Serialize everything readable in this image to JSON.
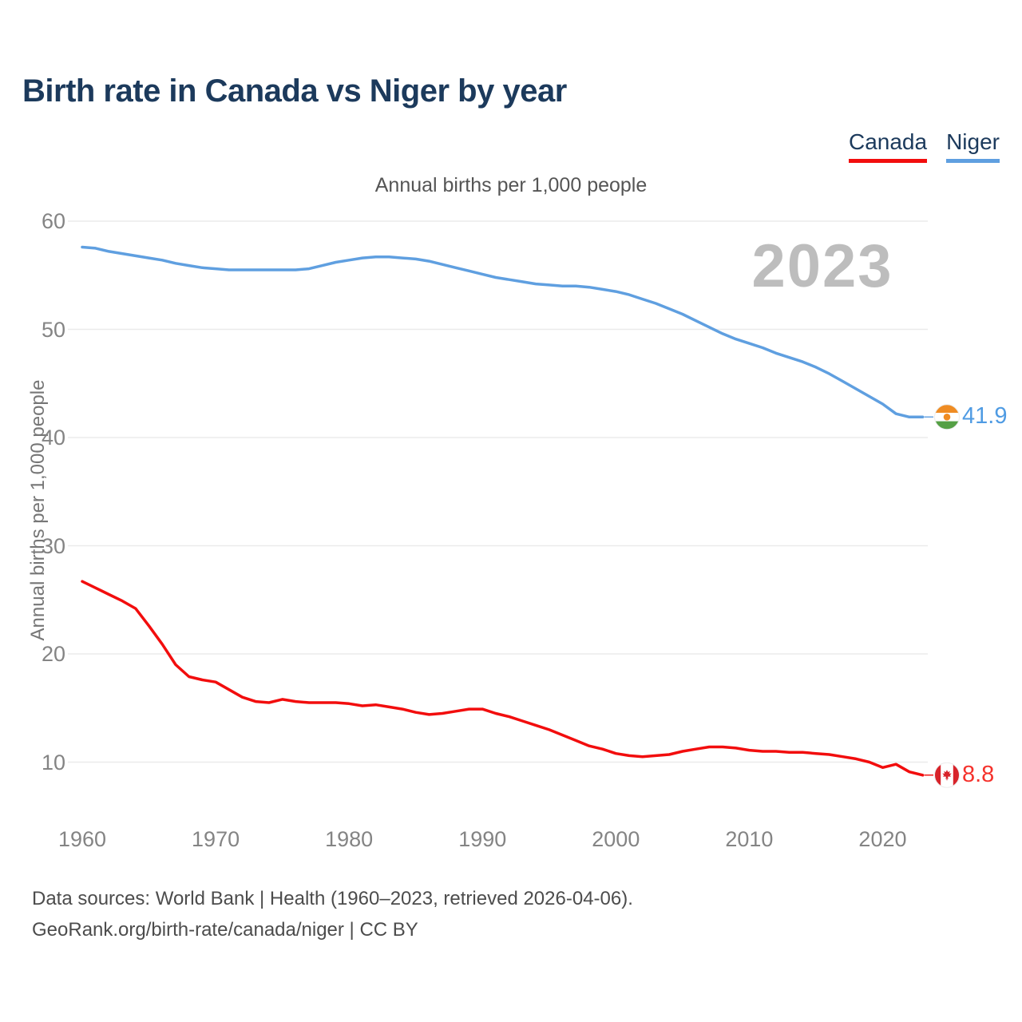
{
  "page": {
    "title": "Birth rate in Canada vs Niger by year",
    "subtitle": "Annual births per 1,000 people",
    "watermark_year": "2023"
  },
  "legend": {
    "items": [
      {
        "label": "Canada",
        "color": "#f20d0d"
      },
      {
        "label": "Niger",
        "color": "#5f9fe0"
      }
    ]
  },
  "chart_data": {
    "type": "line",
    "title": "Annual births per 1,000 people",
    "xlabel": "",
    "ylabel": "Annual births per 1,000 people",
    "x_range": [
      1960,
      2023
    ],
    "ylim": [
      8,
      62
    ],
    "grid": "horizontal",
    "legend_position": "top-right",
    "yticks": [
      10,
      20,
      30,
      40,
      50,
      60
    ],
    "xticks": [
      1960,
      1970,
      1980,
      1990,
      2000,
      2010,
      2020
    ],
    "x": [
      1960,
      1961,
      1962,
      1963,
      1964,
      1965,
      1966,
      1967,
      1968,
      1969,
      1970,
      1971,
      1972,
      1973,
      1974,
      1975,
      1976,
      1977,
      1978,
      1979,
      1980,
      1981,
      1982,
      1983,
      1984,
      1985,
      1986,
      1987,
      1988,
      1989,
      1990,
      1991,
      1992,
      1993,
      1994,
      1995,
      1996,
      1997,
      1998,
      1999,
      2000,
      2001,
      2002,
      2003,
      2004,
      2005,
      2006,
      2007,
      2008,
      2009,
      2010,
      2011,
      2012,
      2013,
      2014,
      2015,
      2016,
      2017,
      2018,
      2019,
      2020,
      2021,
      2022,
      2023
    ],
    "series": [
      {
        "name": "Canada",
        "color": "#f20d0d",
        "label_color": "#f5322c",
        "flag": "canada",
        "end_label": "8.8",
        "values": [
          26.7,
          26.1,
          25.5,
          24.9,
          24.2,
          22.6,
          20.9,
          19.0,
          17.9,
          17.6,
          17.4,
          16.7,
          16.0,
          15.6,
          15.5,
          15.8,
          15.6,
          15.5,
          15.5,
          15.5,
          15.4,
          15.2,
          15.3,
          15.1,
          14.9,
          14.6,
          14.4,
          14.5,
          14.7,
          14.9,
          14.9,
          14.5,
          14.2,
          13.8,
          13.4,
          13.0,
          12.5,
          12.0,
          11.5,
          11.2,
          10.8,
          10.6,
          10.5,
          10.6,
          10.7,
          11.0,
          11.2,
          11.4,
          11.4,
          11.3,
          11.1,
          11.0,
          11.0,
          10.9,
          10.9,
          10.8,
          10.7,
          10.5,
          10.3,
          10.0,
          9.5,
          9.8,
          9.1,
          8.8
        ]
      },
      {
        "name": "Niger",
        "color": "#5f9fe0",
        "label_color": "#4f9be3",
        "flag": "niger",
        "end_label": "41.9",
        "values": [
          57.6,
          57.5,
          57.2,
          57.0,
          56.8,
          56.6,
          56.4,
          56.1,
          55.9,
          55.7,
          55.6,
          55.5,
          55.5,
          55.5,
          55.5,
          55.5,
          55.5,
          55.6,
          55.9,
          56.2,
          56.4,
          56.6,
          56.7,
          56.7,
          56.6,
          56.5,
          56.3,
          56.0,
          55.7,
          55.4,
          55.1,
          54.8,
          54.6,
          54.4,
          54.2,
          54.1,
          54.0,
          54.0,
          53.9,
          53.7,
          53.5,
          53.2,
          52.8,
          52.4,
          51.9,
          51.4,
          50.8,
          50.2,
          49.6,
          49.1,
          48.7,
          48.3,
          47.8,
          47.4,
          47.0,
          46.5,
          45.9,
          45.2,
          44.5,
          43.8,
          43.1,
          42.2,
          41.9,
          41.9
        ]
      }
    ]
  },
  "footer": {
    "line1": "Data sources: World Bank | Health (1960–2023, retrieved 2026-04-06).",
    "line2": "GeoRank.org/birth-rate/canada/niger | CC BY"
  }
}
